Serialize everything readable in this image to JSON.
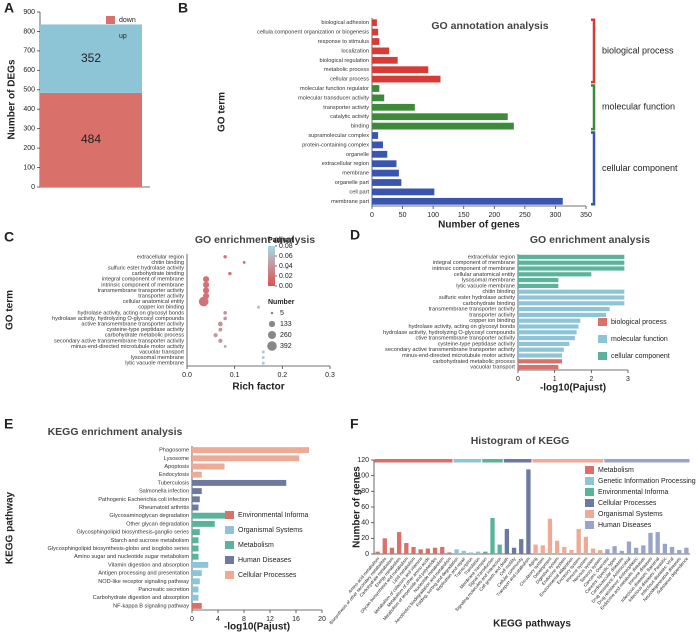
{
  "chart_data": [
    {
      "type": "stacked",
      "label": "A",
      "ylabel": "Number of DEGs",
      "ylim": [
        0,
        900
      ],
      "yticks": [
        0,
        100,
        200,
        300,
        400,
        500,
        600,
        700,
        800,
        900
      ],
      "series": [
        {
          "name": "down",
          "color": "#d9706a",
          "values": [
            484
          ]
        },
        {
          "name": "up",
          "color": "#8ec5d6",
          "values": [
            352
          ]
        }
      ]
    },
    {
      "type": "hbar",
      "label": "B",
      "title": "GO annotation analysis",
      "xlabel": "Number of genes",
      "ylabel": "GO term",
      "xlim": [
        0,
        350
      ],
      "xticks": [
        0,
        50,
        100,
        150,
        200,
        250,
        300,
        350
      ],
      "series": [
        {
          "name": "biological process",
          "color": "#d63b36",
          "categories": [
            "biological adhesion",
            "cellula component organization or biogenesis",
            "response to stimulus",
            "localization",
            "biological regulation",
            "metabolic process",
            "cellular process"
          ],
          "values": [
            8,
            10,
            12,
            28,
            42,
            92,
            112
          ]
        },
        {
          "name": "molecular function",
          "color": "#3d8a3a",
          "categories": [
            "molecular function regulator",
            "molecular transducer activity",
            "transporter activity",
            "catalytic activity",
            "binding"
          ],
          "values": [
            12,
            20,
            70,
            222,
            232
          ]
        },
        {
          "name": "cellular component",
          "color": "#3a55b0",
          "categories": [
            "supramolecular complex",
            "protein-containing complex",
            "organelle",
            "extracellular region",
            "membrane",
            "organelle part",
            "cell part",
            "membrane part"
          ],
          "values": [
            10,
            18,
            25,
            40,
            44,
            48,
            102,
            312
          ]
        }
      ]
    },
    {
      "type": "bubble",
      "label": "C",
      "title": "GO enrichment analysis",
      "xlabel": "Rich factor",
      "ylabel": "GO term",
      "xlim": [
        0,
        0.3
      ],
      "xticks": [
        {
          "value": 0,
          "label": "0.0"
        },
        0.1,
        0.2,
        0.3
      ],
      "categories": [
        "extracellular region",
        "chitin binding",
        "sulfuric ester hydrolase activity",
        "carbohydrate binding",
        "integral component of membrane",
        "intrinsic component of membrane",
        "transmembrane transporter activity",
        "transporter activity",
        "cellular anatomical entity",
        "copper ion binding",
        "hydrolase activity, acting on glycosyl bonds",
        "hydrolase activity, hydrolyzing O-glycosyl compounds",
        "active transmembrane transporter activity",
        "cysteine-type peptidase activity",
        "carbohydrate metabolic process",
        "secondary active transmembrane transporter activity",
        "minus-end-directed microtubule motor activity",
        "vacuolar transport",
        "lysosomal membrane",
        "lytic vacuole membrane"
      ],
      "values": [
        0.08,
        0.12,
        0.21,
        0.09,
        0.04,
        0.04,
        0.04,
        0.04,
        0.035,
        0.15,
        0.08,
        0.08,
        0.07,
        0.07,
        0.06,
        0.07,
        0.08,
        0.16,
        0.16,
        0.16
      ],
      "padjust": [
        0.02,
        0.02,
        0.07,
        0.02,
        0.02,
        0.02,
        0.02,
        0.02,
        0.02,
        0.07,
        0.04,
        0.04,
        0.04,
        0.04,
        0.04,
        0.04,
        0.05,
        0.07,
        0.07,
        0.07
      ],
      "sizes": [
        20,
        10,
        10,
        20,
        130,
        130,
        130,
        130,
        392,
        15,
        25,
        25,
        60,
        30,
        40,
        40,
        10,
        10,
        10,
        10
      ],
      "color_title": "Padjust",
      "clim": [
        0,
        0.08
      ],
      "colors": [
        "#e05050",
        "#a8d8e8"
      ],
      "cticks": [
        0.08,
        0.06,
        0.04,
        0.02,
        {
          "value": 0,
          "label": "0.00"
        }
      ],
      "size_title": "Number",
      "size_ticks": [
        5,
        133,
        260,
        392
      ]
    },
    {
      "type": "hbar",
      "label": "D",
      "title": "GO enrichment analysis",
      "xlabel": "-log10(Pajust)",
      "xlim": [
        0,
        3
      ],
      "xticks": [
        0,
        1,
        2,
        3
      ],
      "series": [
        {
          "name": "cellular component",
          "color": "#5ab39a",
          "categories": [
            "extracellular region",
            "integral component of membrane",
            "intrinsic component of membrane",
            "cellular anatomical entity",
            "lysosomal membrane",
            "lytic vacuole membrane"
          ],
          "values": [
            2.9,
            2.9,
            2.9,
            2.0,
            1.1,
            1.1
          ]
        },
        {
          "name": "molecular function",
          "color": "#8ec5d6",
          "categories": [
            "chitin binding",
            "sulfuric ester hydrolase activity",
            "carbohydrate binding",
            "transmembrane transporter activity",
            "transporter activity",
            "copper ion binding",
            "hydrolase activity, acting on glycosyl bonds",
            "hydrolase activity, hydrolyzing O-glycosyl compounds",
            "ctive transmembrane transporter activity",
            "cysteine-type peptidase activity",
            "secondary active transmembrane transporter activity",
            "minus-end-directed microtubule motor activity"
          ],
          "values": [
            2.9,
            2.9,
            2.9,
            2.5,
            2.4,
            1.7,
            1.65,
            1.6,
            1.55,
            1.4,
            1.25,
            1.2
          ]
        },
        {
          "name": "biological process",
          "color": "#d9706a",
          "categories": [
            "carbohydrated metabolic process",
            "vacuolar transport"
          ],
          "values": [
            1.2,
            1.1
          ]
        }
      ]
    },
    {
      "type": "hbar",
      "label": "E",
      "title": "KEGG enrichment analysis",
      "xlabel": "-log10(Pajust)",
      "ylabel": "KEGG pathway",
      "xlim": [
        0,
        20
      ],
      "xticks": [
        0,
        4,
        8,
        12,
        16,
        20
      ],
      "series": [
        {
          "name": "Cellular Processes",
          "color": "#eeaa95",
          "categories": [
            "Phagosome",
            "Lysosome",
            "Apoptosis",
            "Endocytosis"
          ],
          "values": [
            18,
            16.5,
            5,
            1.5
          ]
        },
        {
          "name": "Human Diseases",
          "color": "#6b7a9e",
          "categories": [
            "Tuberculosis",
            "Salmonella infection",
            "Pathogenic Escherichia coli infection",
            "Rheumatoid arthritis"
          ],
          "values": [
            14.5,
            1.5,
            1.2,
            1
          ]
        },
        {
          "name": "Metabolism",
          "color": "#5ab39a",
          "categories": [
            "Glycosaminoglycan degradation",
            "Other glycan degradation",
            "Glycosphingolipid biosynthesis-ganglio series",
            "Starch and sucrose metabolism",
            "Glycosphingolipid biosynthesis-globo and isoglobo series",
            "Amino sugar and nucleotide sugar metabolism"
          ],
          "values": [
            6,
            3.5,
            1.2,
            1,
            1,
            1
          ]
        },
        {
          "name": "Organismal Systems",
          "color": "#8ec5d6",
          "categories": [
            "Vitamin digestion and absorption",
            "Antigen processing and presentation",
            "NOD-like receptor signaling pathway",
            "Pancreatic secretion",
            "Carbohydrate digestion and absorption"
          ],
          "values": [
            2.5,
            1.5,
            1.2,
            1,
            1
          ]
        },
        {
          "name": "Environmental Informa",
          "color": "#d9706a",
          "categories": [
            "NF-kappa B signaling pathway"
          ],
          "values": [
            1.5
          ]
        }
      ]
    },
    {
      "type": "vbar",
      "label": "F",
      "title": "Histogram of KEGG",
      "xlabel": "KEGG pathways",
      "ylabel": "Number of genes",
      "ylim": [
        0,
        120
      ],
      "yticks": [
        0,
        20,
        40,
        60,
        80,
        100,
        120
      ],
      "series": [
        {
          "name": "Metabolism",
          "color": "#d9706a",
          "categories": [
            "Amino acid metabolism",
            "Biosynthesis of other secondary metabolites",
            "Carbohydrate metabolism",
            "Energy metabolism",
            "Glycan biosynthesis and metabolism",
            "Lipid metabolism",
            "Metabolism of cofactors and vitamins",
            "Metabolism of other amino acids",
            "Metabolism of terpenoids and polyketides",
            "Nucleotide metabolism",
            "Xenobiotics biodegradation and metabolism"
          ],
          "values": [
            3,
            20,
            8,
            28,
            14,
            9,
            6,
            7,
            8,
            9,
            2
          ]
        },
        {
          "name": "Genetic Information Processing",
          "color": "#8ec5d6",
          "categories": [
            "Folding, sorting and degradation",
            "Replication and repair",
            "Transcription",
            "Translation"
          ],
          "values": [
            6,
            4,
            2,
            3
          ]
        },
        {
          "name": "Environmental Informa",
          "color": "#5ab39a",
          "categories": [
            "Membrane transport",
            "Signal transduction",
            "Signaling molecules and interaction"
          ],
          "values": [
            3,
            46,
            12
          ]
        },
        {
          "name": "Cellular Processes",
          "color": "#6b7a9e",
          "categories": [
            "Cell growth and death",
            "Cell motility",
            "Cellular community",
            "Transport and catabolism"
          ],
          "values": [
            32,
            8,
            19,
            108
          ]
        },
        {
          "name": "Organismal Systems",
          "color": "#eeaa95",
          "categories": [
            "Aging",
            "Circulatory system",
            "Development",
            "Digestive system",
            "Endocrine system",
            "Environmental adaptation",
            "Excretory system",
            "Immune system",
            "Nervous system",
            "Sensory system"
          ],
          "values": [
            12,
            11,
            45,
            17,
            9,
            5,
            32,
            22,
            7,
            5
          ]
        },
        {
          "name": "Human Diseases",
          "color": "#9aa3c8",
          "categories": [
            "Cancers: Overview",
            "Cancers: Specific types",
            "Cardiovascular diseases",
            "Drug resistance: Antimicrobial",
            "Drug resistance: Antineoplastic",
            "Endocrine and metabolic diseases",
            "Immune diseases",
            "Infectious diseases: Bacterial",
            "Infectious diseases: Parasitic",
            "Infectious diseases: Viral",
            "Neurodegenerative diseases",
            "Substance dependence"
          ],
          "values": [
            6,
            10,
            4,
            16,
            8,
            11,
            27,
            28,
            13,
            9,
            5,
            8
          ]
        }
      ]
    }
  ]
}
